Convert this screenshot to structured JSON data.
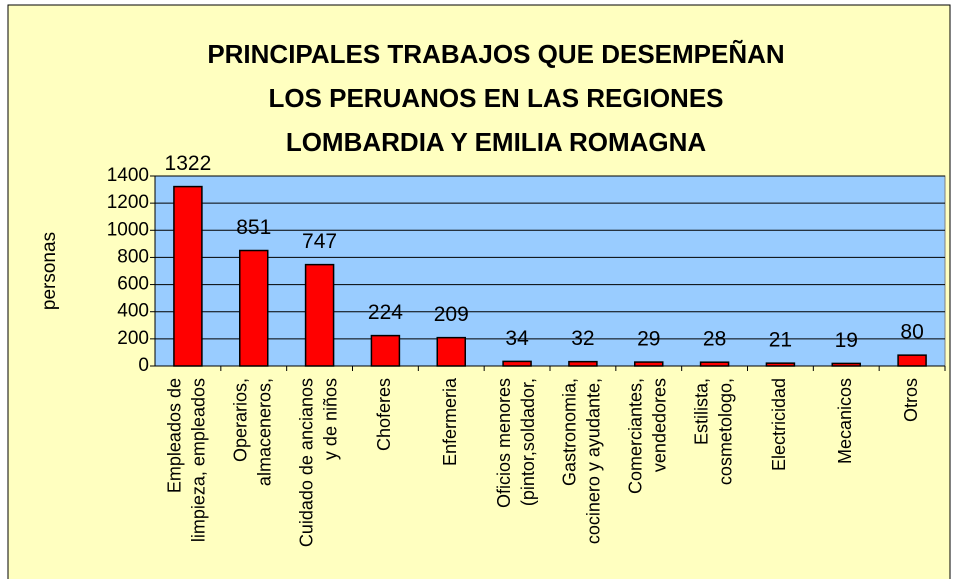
{
  "chart_data": {
    "type": "bar",
    "title": [
      "PRINCIPALES TRABAJOS QUE DESEMPEÑAN",
      "LOS PERUANOS EN LAS REGIONES",
      "LOMBARDIA Y EMILIA ROMAGNA"
    ],
    "ylabel": "personas",
    "categories": [
      [
        "Empleados de",
        "limpieza, empleados"
      ],
      [
        "Operarios,",
        "almaceneros,"
      ],
      [
        "Cuidado de ancianos",
        "y de niños"
      ],
      [
        "Choferes"
      ],
      [
        "Enfermeria"
      ],
      [
        "Oficios menores",
        "(pintor,soldador,"
      ],
      [
        "Gastronomia,",
        "cocinero y ayudante,"
      ],
      [
        "Comerciantes,",
        "vendedores"
      ],
      [
        "Estilista,",
        "cosmetologo,"
      ],
      [
        "Electricidad"
      ],
      [
        "Mecanicos"
      ],
      [
        "Otros"
      ]
    ],
    "values": [
      1322,
      851,
      747,
      224,
      209,
      34,
      32,
      29,
      28,
      21,
      19,
      80
    ],
    "color": "#ff0000",
    "ylim": [
      0,
      1400
    ],
    "yticks": [
      0,
      200,
      400,
      600,
      800,
      1000,
      1200,
      1400
    ],
    "grid": true
  }
}
